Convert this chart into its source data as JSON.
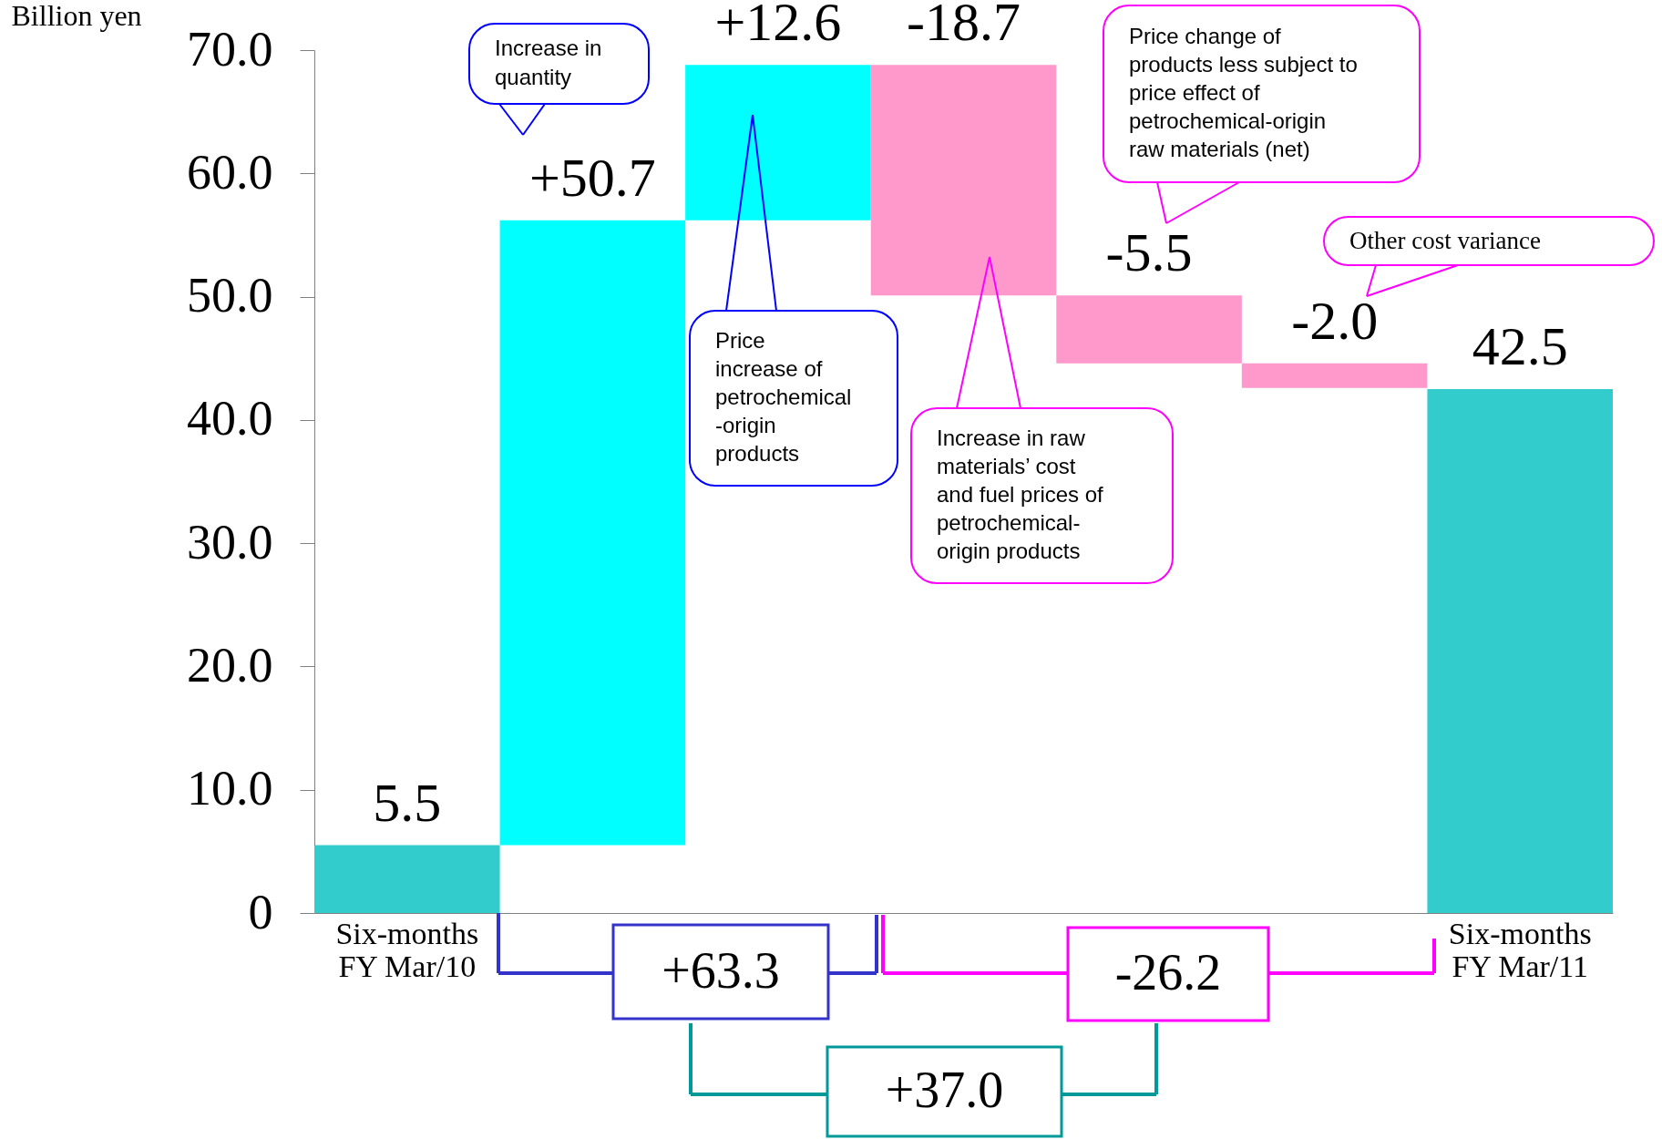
{
  "chart_data": {
    "type": "bar",
    "ylabel": "Billion yen",
    "categories": [
      "Six-months\nFY Mar/10",
      null,
      null,
      null,
      null,
      null,
      "Six-months\nFY Mar/11"
    ],
    "values": [
      5.5,
      50.7,
      12.6,
      -18.7,
      -5.5,
      -2.0,
      42.5
    ],
    "base": [
      0,
      5.5,
      56.2,
      68.8,
      50.1,
      44.6,
      0
    ],
    "colors": [
      "#33cccc",
      "#00ffff",
      "#00ffff",
      "#ff99cc",
      "#ff99cc",
      "#ff99cc",
      "#33cccc"
    ],
    "value_labels": [
      "5.5",
      "+50.7",
      "+12.6",
      "-18.7",
      "-5.5",
      "-2.0",
      "42.5"
    ],
    "ylim": [
      0,
      70
    ],
    "yticks": [
      0,
      {
        "value": 10,
        "label": "10.0"
      },
      {
        "value": 20,
        "label": "20.0"
      },
      {
        "value": 30,
        "label": "30.0"
      },
      {
        "value": 40,
        "label": "40.0"
      },
      {
        "value": 50,
        "label": "50.0"
      },
      {
        "value": 60,
        "label": "60.0"
      },
      {
        "value": 70,
        "label": "70.0"
      }
    ],
    "grid": false,
    "annotations": [
      "Increase in\nquantity",
      "Price\nincrease of\npetrochemical\n-origin\nproducts",
      "Increase in raw\nmaterials’ cost\nand fuel prices of\npetrochemical-\norigin products",
      "Price change of\nproducts less subject to\nprice effect of\npetrochemical-origin\nraw materials (net)",
      "Other cost variance",
      "+63.3",
      "-26.2",
      "+37.0"
    ]
  }
}
